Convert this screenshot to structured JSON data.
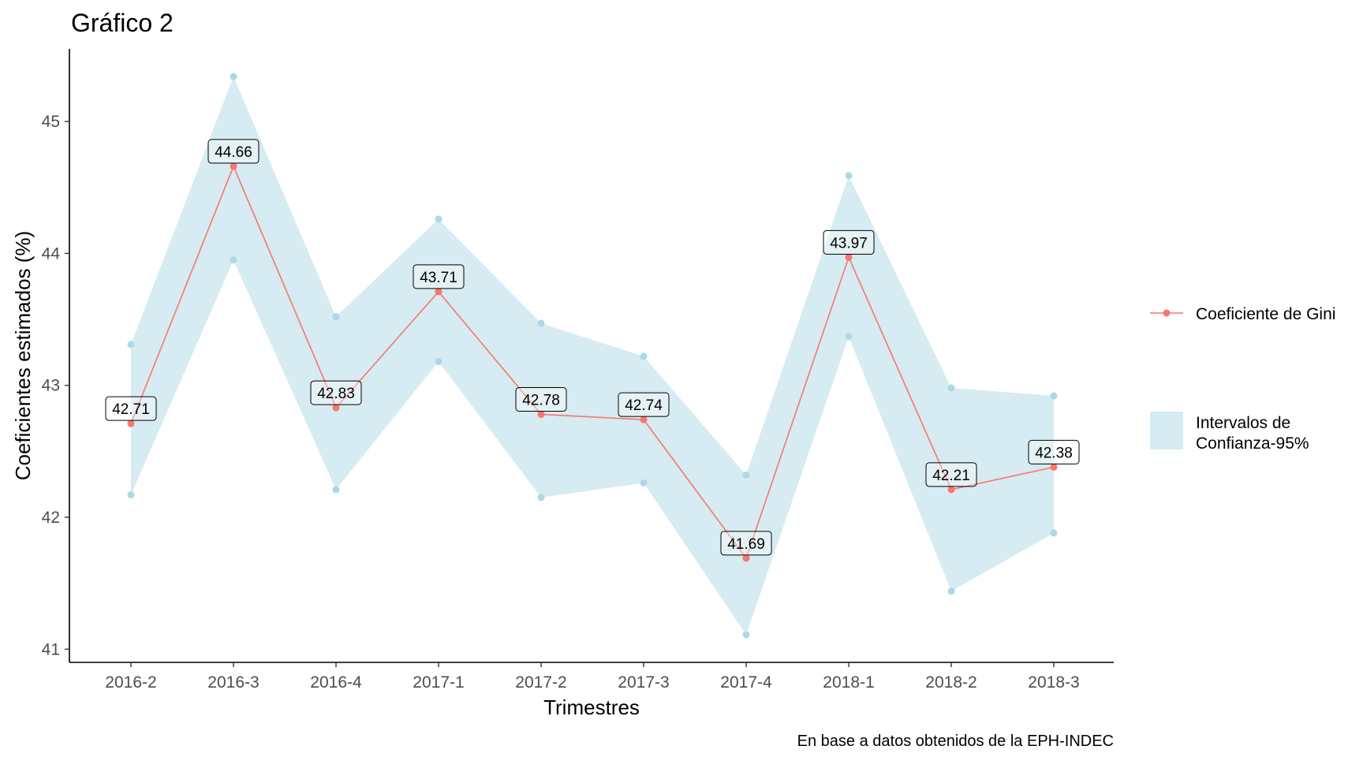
{
  "chart_data": {
    "type": "line",
    "title": "Gráfico 2",
    "xlabel": "Trimestres",
    "ylabel": "Coeficientes estimados (%)",
    "caption": "En base a datos obtenidos de la EPH-INDEC",
    "categories": [
      "2016-2",
      "2016-3",
      "2016-4",
      "2017-1",
      "2017-2",
      "2017-3",
      "2017-4",
      "2018-1",
      "2018-2",
      "2018-3"
    ],
    "ylim": [
      40.9,
      45.55
    ],
    "yticks": [
      41,
      42,
      43,
      44,
      45
    ],
    "grid": false,
    "legend_position": "right",
    "series": [
      {
        "name": "Coeficiente de Gini",
        "color": "#f8766d",
        "values": [
          42.71,
          44.66,
          42.83,
          43.71,
          42.78,
          42.74,
          41.69,
          43.97,
          42.21,
          42.38
        ],
        "labels": [
          "42.71",
          "44.66",
          "42.83",
          "43.71",
          "42.78",
          "42.74",
          "41.69",
          "43.97",
          "42.21",
          "42.38"
        ]
      }
    ],
    "confidence_band": {
      "name": "Intervalos de Confianza-95%",
      "name_lines": [
        "Intervalos de",
        "Confianza-95%"
      ],
      "color": "#add8e6",
      "lower": [
        42.17,
        43.95,
        42.21,
        43.18,
        42.15,
        42.26,
        41.11,
        43.37,
        41.44,
        41.88
      ],
      "upper": [
        43.31,
        45.34,
        43.52,
        44.26,
        43.47,
        43.22,
        42.32,
        44.59,
        42.98,
        42.92
      ]
    }
  }
}
